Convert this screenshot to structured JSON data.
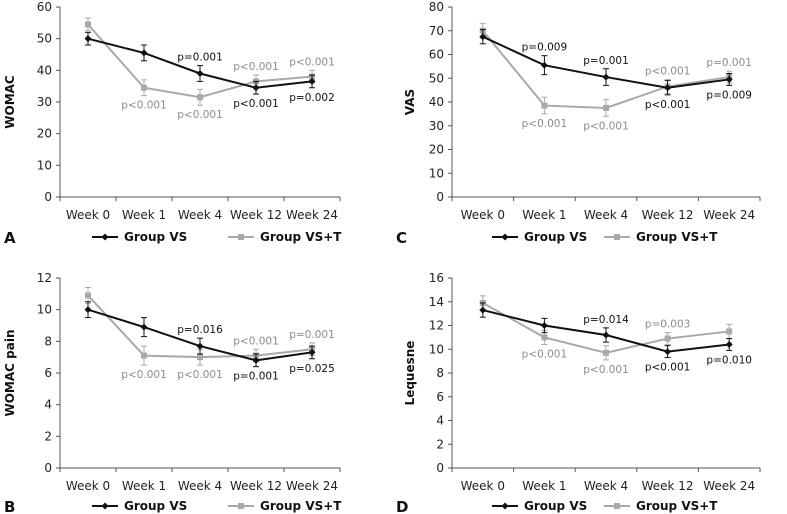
{
  "colors": {
    "group_vs": "#111111",
    "group_vst": "#a9a9a9",
    "axis": "#555555"
  },
  "chart_data": [
    {
      "panel_label": "A",
      "type": "line",
      "ylabel": "WOMAC",
      "xlabel": "",
      "categories": [
        "Week 0",
        "Week 1",
        "Week 4",
        "Week 12",
        "Week 24"
      ],
      "ylim": [
        0,
        60
      ],
      "yticks": [
        0,
        10,
        20,
        30,
        40,
        50,
        60
      ],
      "series": [
        {
          "name": "Group VS",
          "values": [
            50,
            45.5,
            39,
            34.5,
            36.5
          ],
          "errors": [
            2,
            2.5,
            2.5,
            2,
            2
          ]
        },
        {
          "name": "Group VS+T",
          "values": [
            54.5,
            34.5,
            31.5,
            36.5,
            38
          ],
          "errors": [
            2,
            2.5,
            2.5,
            2,
            2
          ]
        }
      ],
      "annotations": [
        {
          "category": 1,
          "series": 1,
          "text": "p<0.001",
          "pos": "below"
        },
        {
          "category": 2,
          "series": 0,
          "text": "p=0.001",
          "pos": "above"
        },
        {
          "category": 2,
          "series": 1,
          "text": "p<0.001",
          "pos": "below"
        },
        {
          "category": 3,
          "series": 1,
          "text": "p<0.001",
          "pos": "above"
        },
        {
          "category": 3,
          "series": 0,
          "text": "p<0.001",
          "pos": "below"
        },
        {
          "category": 4,
          "series": 1,
          "text": "p<0.001",
          "pos": "above"
        },
        {
          "category": 4,
          "series": 0,
          "text": "p=0.002",
          "pos": "below"
        }
      ]
    },
    {
      "panel_label": "C",
      "type": "line",
      "ylabel": "VAS",
      "xlabel": "",
      "categories": [
        "Week 0",
        "Week 1",
        "Week 4",
        "Week 12",
        "Week 24"
      ],
      "ylim": [
        0,
        80
      ],
      "yticks": [
        0,
        10,
        20,
        30,
        40,
        50,
        60,
        70,
        80
      ],
      "series": [
        {
          "name": "Group VS",
          "values": [
            67.5,
            55.5,
            50.5,
            46,
            49.5
          ],
          "errors": [
            3,
            4,
            3.5,
            3,
            2.5
          ]
        },
        {
          "name": "Group VS+T",
          "values": [
            70,
            38.5,
            37.5,
            46.5,
            50.5
          ],
          "errors": [
            3,
            3.5,
            3.5,
            3,
            2.5
          ]
        }
      ],
      "annotations": [
        {
          "category": 1,
          "series": 0,
          "text": "p=0.009",
          "pos": "above"
        },
        {
          "category": 1,
          "series": 1,
          "text": "p<0.001",
          "pos": "below"
        },
        {
          "category": 2,
          "series": 0,
          "text": "p=0.001",
          "pos": "above"
        },
        {
          "category": 2,
          "series": 1,
          "text": "p<0.001",
          "pos": "below"
        },
        {
          "category": 3,
          "series": 1,
          "text": "p<0.001",
          "pos": "above"
        },
        {
          "category": 3,
          "series": 0,
          "text": "p<0.001",
          "pos": "below"
        },
        {
          "category": 4,
          "series": 1,
          "text": "p=0.001",
          "pos": "above"
        },
        {
          "category": 4,
          "series": 0,
          "text": "p=0.009",
          "pos": "below"
        }
      ]
    },
    {
      "panel_label": "B",
      "type": "line",
      "ylabel": "WOMAC pain",
      "xlabel": "",
      "categories": [
        "Week 0",
        "Week 1",
        "Week 4",
        "Week 12",
        "Week 24"
      ],
      "ylim": [
        0,
        12
      ],
      "yticks": [
        0,
        2,
        4,
        6,
        8,
        10,
        12
      ],
      "series": [
        {
          "name": "Group VS",
          "values": [
            10,
            8.9,
            7.7,
            6.8,
            7.3
          ],
          "errors": [
            0.5,
            0.6,
            0.5,
            0.4,
            0.4
          ]
        },
        {
          "name": "Group VS+T",
          "values": [
            10.9,
            7.1,
            7.0,
            7.1,
            7.5
          ],
          "errors": [
            0.5,
            0.6,
            0.5,
            0.4,
            0.4
          ]
        }
      ],
      "annotations": [
        {
          "category": 1,
          "series": 1,
          "text": "p<0.001",
          "pos": "below"
        },
        {
          "category": 2,
          "series": 0,
          "text": "p=0.016",
          "pos": "above"
        },
        {
          "category": 2,
          "series": 1,
          "text": "p<0.001",
          "pos": "below"
        },
        {
          "category": 3,
          "series": 1,
          "text": "p<0.001",
          "pos": "above"
        },
        {
          "category": 3,
          "series": 0,
          "text": "p=0.001",
          "pos": "below"
        },
        {
          "category": 4,
          "series": 1,
          "text": "p=0.001",
          "pos": "above"
        },
        {
          "category": 4,
          "series": 0,
          "text": "p=0.025",
          "pos": "below"
        }
      ]
    },
    {
      "panel_label": "D",
      "type": "line",
      "ylabel": "Lequesne",
      "xlabel": "",
      "categories": [
        "Week 0",
        "Week 1",
        "Week 4",
        "Week 12",
        "Week 24"
      ],
      "ylim": [
        0,
        16
      ],
      "yticks": [
        0,
        2,
        4,
        6,
        8,
        10,
        12,
        14,
        16
      ],
      "series": [
        {
          "name": "Group VS",
          "values": [
            13.3,
            12.0,
            11.2,
            9.8,
            10.4
          ],
          "errors": [
            0.6,
            0.6,
            0.6,
            0.5,
            0.5
          ]
        },
        {
          "name": "Group VS+T",
          "values": [
            13.9,
            11.0,
            9.7,
            10.9,
            11.5
          ],
          "errors": [
            0.6,
            0.6,
            0.6,
            0.5,
            0.6
          ]
        }
      ],
      "annotations": [
        {
          "category": 1,
          "series": 1,
          "text": "p<0.001",
          "pos": "below"
        },
        {
          "category": 2,
          "series": 0,
          "text": "p=0.014",
          "pos": "above"
        },
        {
          "category": 2,
          "series": 1,
          "text": "p<0.001",
          "pos": "below"
        },
        {
          "category": 3,
          "series": 1,
          "text": "p=0.003",
          "pos": "above"
        },
        {
          "category": 3,
          "series": 0,
          "text": "p<0.001",
          "pos": "below"
        },
        {
          "category": 4,
          "series": 0,
          "text": "p=0.010",
          "pos": "below"
        }
      ]
    }
  ]
}
